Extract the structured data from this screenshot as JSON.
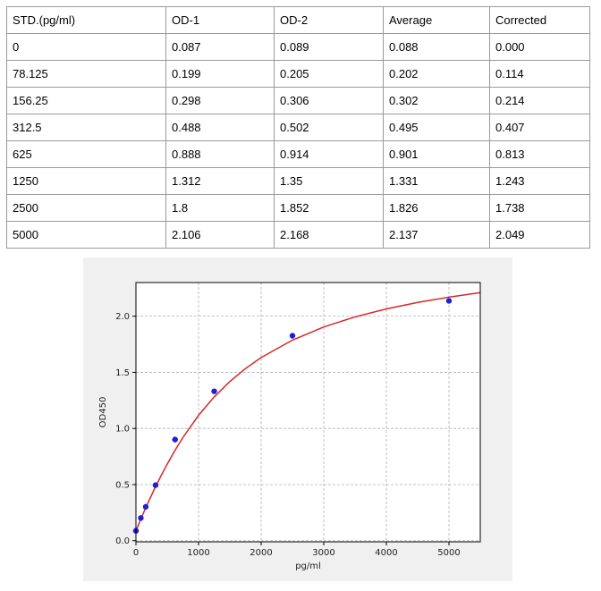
{
  "table": {
    "headers": [
      "STD.(pg/ml)",
      "OD-1",
      "OD-2",
      "Average",
      "Corrected"
    ],
    "rows": [
      [
        "0",
        "0.087",
        "0.089",
        "0.088",
        "0.000"
      ],
      [
        "78.125",
        "0.199",
        "0.205",
        "0.202",
        "0.114"
      ],
      [
        "156.25",
        "0.298",
        "0.306",
        "0.302",
        "0.214"
      ],
      [
        "312.5",
        "0.488",
        "0.502",
        "0.495",
        "0.407"
      ],
      [
        "625",
        "0.888",
        "0.914",
        "0.901",
        "0.813"
      ],
      [
        "1250",
        "1.312",
        "1.35",
        "1.331",
        "1.243"
      ],
      [
        "2500",
        "1.8",
        "1.852",
        "1.826",
        "1.738"
      ],
      [
        "5000",
        "2.106",
        "2.168",
        "2.137",
        "2.049"
      ]
    ]
  },
  "chart_data": {
    "type": "scatter",
    "xlabel": "pg/ml",
    "ylabel": "OD450",
    "xlim": [
      0,
      5500
    ],
    "ylim": [
      -0.01,
      2.3
    ],
    "xticks": [
      0,
      1000,
      2000,
      3000,
      4000,
      5000
    ],
    "yticks": [
      0.0,
      0.5,
      1.0,
      1.5,
      2.0
    ],
    "xtick_labels": [
      "0",
      "1000",
      "2000",
      "3000",
      "4000",
      "5000"
    ],
    "ytick_labels": [
      "0.0",
      "0.5",
      "1.0",
      "1.5",
      "2.0"
    ],
    "grid": true,
    "points": {
      "x": [
        0,
        78.125,
        156.25,
        312.5,
        625,
        1250,
        2500,
        5000
      ],
      "y": [
        0.088,
        0.202,
        0.302,
        0.495,
        0.901,
        1.331,
        1.826,
        2.137
      ]
    },
    "fit_curve": {
      "x": [
        0,
        50,
        100,
        150,
        200,
        300,
        400,
        500,
        625,
        750,
        1000,
        1250,
        1500,
        1750,
        2000,
        2500,
        3000,
        3500,
        4000,
        4500,
        5000,
        5500
      ],
      "y": [
        0.088,
        0.155,
        0.221,
        0.285,
        0.347,
        0.466,
        0.578,
        0.683,
        0.806,
        0.919,
        1.117,
        1.281,
        1.418,
        1.534,
        1.632,
        1.787,
        1.904,
        1.994,
        2.065,
        2.123,
        2.17,
        2.21
      ]
    },
    "colors": {
      "points": "#1f1fd6",
      "curve": "#d62728",
      "grid": "#b0b0b0"
    }
  }
}
